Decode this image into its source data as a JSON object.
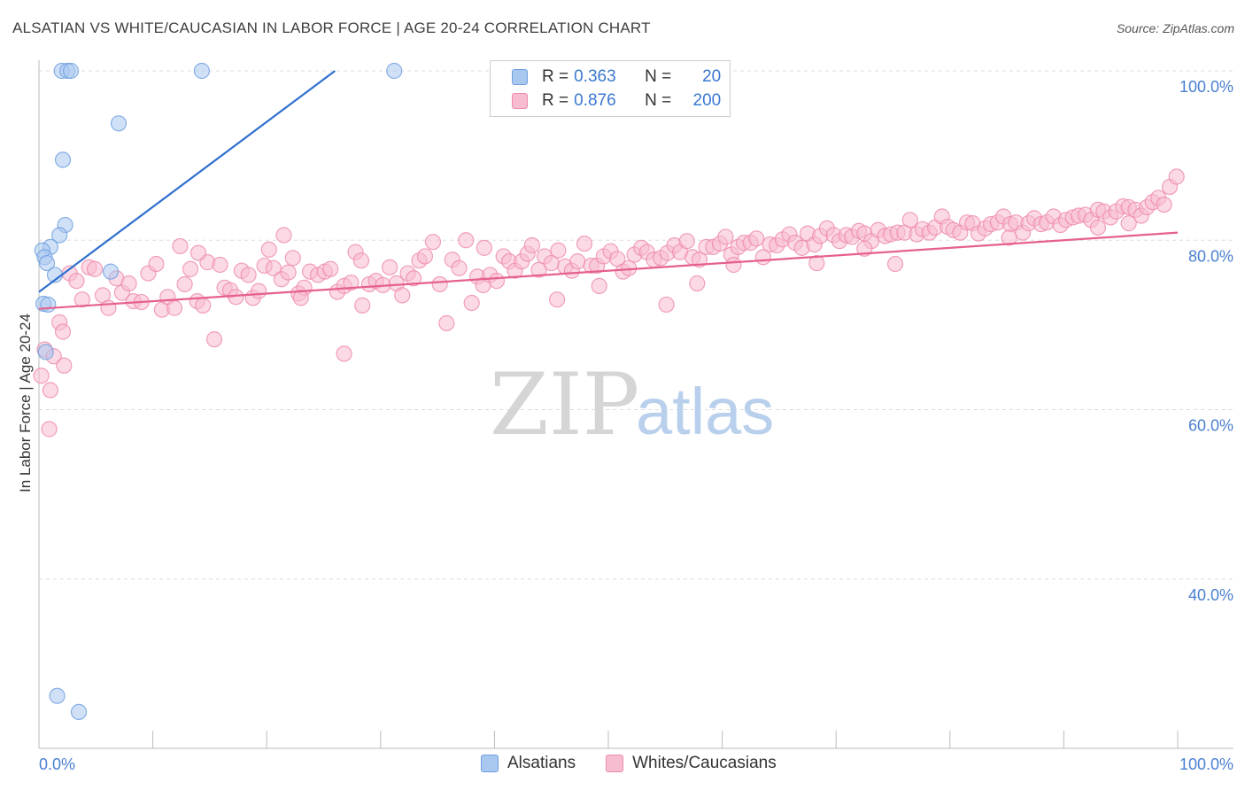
{
  "title": "ALSATIAN VS WHITE/CAUCASIAN IN LABOR FORCE | AGE 20-24 CORRELATION CHART",
  "source": "Source: ZipAtlas.com",
  "watermark": {
    "zip": "ZIP",
    "atlas": "atlas"
  },
  "legend": {
    "rows": [
      {
        "r_label": "R =",
        "r_value": "0.363",
        "n_label": "N =",
        "n_value": "20",
        "color": "#a9c8f0",
        "border": "#6d9ee0"
      },
      {
        "r_label": "R =",
        "r_value": "0.876",
        "n_label": "N =",
        "n_value": "200",
        "color": "#f7bcd0",
        "border": "#ee8aab"
      }
    ]
  },
  "bottom_legend": [
    {
      "label": "Alsatians",
      "color": "#a9c8f0",
      "border": "#6d9ee0"
    },
    {
      "label": "Whites/Caucasians",
      "color": "#f7bcd0",
      "border": "#ee8aab"
    }
  ],
  "chart_data": {
    "type": "scatter",
    "xlabel": "",
    "ylabel": "In Labor Force | Age 20-24",
    "xlim": [
      0,
      100
    ],
    "ylim": [
      20,
      100
    ],
    "y_tick_labels": [
      "100.0%",
      "80.0%",
      "60.0%",
      "40.0%"
    ],
    "y_ticks": [
      100,
      80,
      60,
      40
    ],
    "x_tick_labels": [
      "0.0%",
      "100.0%"
    ],
    "grid": true,
    "series": [
      {
        "name": "Alsatians",
        "color": "#a9c8f0",
        "stroke": "#6d9ee0",
        "line_color": "#2f6fcf",
        "trend": [
          [
            0,
            73.9
          ],
          [
            26,
            100
          ]
        ],
        "points": [
          [
            2.0,
            100
          ],
          [
            2.5,
            100
          ],
          [
            2.8,
            100
          ],
          [
            14.3,
            100
          ],
          [
            31.2,
            100
          ],
          [
            7.0,
            93.8
          ],
          [
            2.1,
            89.5
          ],
          [
            2.3,
            81.8
          ],
          [
            1.8,
            80.6
          ],
          [
            1.0,
            79.2
          ],
          [
            0.3,
            78.8
          ],
          [
            0.5,
            78.0
          ],
          [
            0.7,
            77.3
          ],
          [
            1.4,
            75.9
          ],
          [
            6.3,
            76.3
          ],
          [
            0.4,
            72.5
          ],
          [
            0.8,
            72.4
          ],
          [
            0.6,
            66.8
          ],
          [
            1.6,
            26.2
          ],
          [
            3.5,
            24.3
          ]
        ]
      },
      {
        "name": "Whites/Caucasians",
        "color": "#f7bcd0",
        "stroke": "#ee8aab",
        "line_color": "#e6608e",
        "trend": [
          [
            0,
            71.9
          ],
          [
            100,
            80.9
          ]
        ],
        "points": [
          [
            0.5,
            67.1
          ],
          [
            0.9,
            57.7
          ],
          [
            1.3,
            66.3
          ],
          [
            1.8,
            70.3
          ],
          [
            2.1,
            69.2
          ],
          [
            2.7,
            76.1
          ],
          [
            3.3,
            75.2
          ],
          [
            3.8,
            73.0
          ],
          [
            4.4,
            76.8
          ],
          [
            4.9,
            76.6
          ],
          [
            5.6,
            73.5
          ],
          [
            6.1,
            72.0
          ],
          [
            6.8,
            75.5
          ],
          [
            7.3,
            73.8
          ],
          [
            7.9,
            74.9
          ],
          [
            8.3,
            72.8
          ],
          [
            9.0,
            72.7
          ],
          [
            9.6,
            76.1
          ],
          [
            10.3,
            77.2
          ],
          [
            10.8,
            71.8
          ],
          [
            11.3,
            73.3
          ],
          [
            11.9,
            72.0
          ],
          [
            12.4,
            79.3
          ],
          [
            12.8,
            74.8
          ],
          [
            13.3,
            76.6
          ],
          [
            13.9,
            72.8
          ],
          [
            14.4,
            72.3
          ],
          [
            14.8,
            77.4
          ],
          [
            15.4,
            68.3
          ],
          [
            15.9,
            77.1
          ],
          [
            16.3,
            74.4
          ],
          [
            16.8,
            74.1
          ],
          [
            17.3,
            73.3
          ],
          [
            17.8,
            76.4
          ],
          [
            18.4,
            75.9
          ],
          [
            18.8,
            73.2
          ],
          [
            19.3,
            74.0
          ],
          [
            19.8,
            77.0
          ],
          [
            20.2,
            78.9
          ],
          [
            20.6,
            76.7
          ],
          [
            21.3,
            75.4
          ],
          [
            21.9,
            76.2
          ],
          [
            22.3,
            77.9
          ],
          [
            22.8,
            73.7
          ],
          [
            23.3,
            74.4
          ],
          [
            23.8,
            76.3
          ],
          [
            24.5,
            75.9
          ],
          [
            25.1,
            76.3
          ],
          [
            25.6,
            76.6
          ],
          [
            26.2,
            73.9
          ],
          [
            26.8,
            74.6
          ],
          [
            27.4,
            75.0
          ],
          [
            27.8,
            78.6
          ],
          [
            28.3,
            77.6
          ],
          [
            29.0,
            74.8
          ],
          [
            29.6,
            75.2
          ],
          [
            30.2,
            74.7
          ],
          [
            30.8,
            76.8
          ],
          [
            31.4,
            74.9
          ],
          [
            31.9,
            73.5
          ],
          [
            32.4,
            76.1
          ],
          [
            32.9,
            75.5
          ],
          [
            33.4,
            77.6
          ],
          [
            33.9,
            78.1
          ],
          [
            34.6,
            79.8
          ],
          [
            35.2,
            74.8
          ],
          [
            35.8,
            70.2
          ],
          [
            36.3,
            77.7
          ],
          [
            36.9,
            76.7
          ],
          [
            37.5,
            80.0
          ],
          [
            38.0,
            72.6
          ],
          [
            38.5,
            75.7
          ],
          [
            39.0,
            74.7
          ],
          [
            39.6,
            75.9
          ],
          [
            40.2,
            75.2
          ],
          [
            40.8,
            78.1
          ],
          [
            41.3,
            77.5
          ],
          [
            41.8,
            76.4
          ],
          [
            42.4,
            77.5
          ],
          [
            42.9,
            78.4
          ],
          [
            43.3,
            79.4
          ],
          [
            43.9,
            76.5
          ],
          [
            44.4,
            78.1
          ],
          [
            45.0,
            77.3
          ],
          [
            45.6,
            78.8
          ],
          [
            46.2,
            76.9
          ],
          [
            46.8,
            76.4
          ],
          [
            47.3,
            77.5
          ],
          [
            47.9,
            79.6
          ],
          [
            48.5,
            77.0
          ],
          [
            49.0,
            77.0
          ],
          [
            49.6,
            78.1
          ],
          [
            50.2,
            78.7
          ],
          [
            50.8,
            77.8
          ],
          [
            51.3,
            76.3
          ],
          [
            51.8,
            76.7
          ],
          [
            52.3,
            78.3
          ],
          [
            52.9,
            79.1
          ],
          [
            53.4,
            78.6
          ],
          [
            54.0,
            77.7
          ],
          [
            54.6,
            77.9
          ],
          [
            55.2,
            78.5
          ],
          [
            55.8,
            79.4
          ],
          [
            56.3,
            78.6
          ],
          [
            56.9,
            79.9
          ],
          [
            57.4,
            78.0
          ],
          [
            58.0,
            77.7
          ],
          [
            58.6,
            79.2
          ],
          [
            59.2,
            79.2
          ],
          [
            59.8,
            79.6
          ],
          [
            60.3,
            80.4
          ],
          [
            60.8,
            78.3
          ],
          [
            61.4,
            79.2
          ],
          [
            61.9,
            79.7
          ],
          [
            62.5,
            79.7
          ],
          [
            63.0,
            80.2
          ],
          [
            63.6,
            78.0
          ],
          [
            64.2,
            79.5
          ],
          [
            64.8,
            79.4
          ],
          [
            65.3,
            80.1
          ],
          [
            65.9,
            80.7
          ],
          [
            66.4,
            79.7
          ],
          [
            67.0,
            79.1
          ],
          [
            67.5,
            80.8
          ],
          [
            68.1,
            79.5
          ],
          [
            68.6,
            80.5
          ],
          [
            69.2,
            81.4
          ],
          [
            69.8,
            80.6
          ],
          [
            70.3,
            79.9
          ],
          [
            70.9,
            80.6
          ],
          [
            71.4,
            80.4
          ],
          [
            72.0,
            81.1
          ],
          [
            72.5,
            80.8
          ],
          [
            73.1,
            79.9
          ],
          [
            73.7,
            81.2
          ],
          [
            74.3,
            80.5
          ],
          [
            74.8,
            80.7
          ],
          [
            75.4,
            80.9
          ],
          [
            76.0,
            80.9
          ],
          [
            76.5,
            82.4
          ],
          [
            77.1,
            80.7
          ],
          [
            77.6,
            81.3
          ],
          [
            78.2,
            80.9
          ],
          [
            78.7,
            81.5
          ],
          [
            79.3,
            82.8
          ],
          [
            79.8,
            81.6
          ],
          [
            80.3,
            81.2
          ],
          [
            80.9,
            80.9
          ],
          [
            81.5,
            82.1
          ],
          [
            82.0,
            82.0
          ],
          [
            82.5,
            80.8
          ],
          [
            83.1,
            81.4
          ],
          [
            83.6,
            81.9
          ],
          [
            84.2,
            82.1
          ],
          [
            84.7,
            82.8
          ],
          [
            85.3,
            81.9
          ],
          [
            85.8,
            82.1
          ],
          [
            86.4,
            80.9
          ],
          [
            86.9,
            82.0
          ],
          [
            87.4,
            82.6
          ],
          [
            88.0,
            81.9
          ],
          [
            88.5,
            82.1
          ],
          [
            89.1,
            82.8
          ],
          [
            89.7,
            81.8
          ],
          [
            90.2,
            82.4
          ],
          [
            90.8,
            82.7
          ],
          [
            91.3,
            82.9
          ],
          [
            91.9,
            83.0
          ],
          [
            92.4,
            82.4
          ],
          [
            93.0,
            83.6
          ],
          [
            93.5,
            83.4
          ],
          [
            94.1,
            82.7
          ],
          [
            94.6,
            83.4
          ],
          [
            95.2,
            84.0
          ],
          [
            95.7,
            83.9
          ],
          [
            96.3,
            83.6
          ],
          [
            96.8,
            82.9
          ],
          [
            97.3,
            83.9
          ],
          [
            97.8,
            84.5
          ],
          [
            98.3,
            85.0
          ],
          [
            98.8,
            84.2
          ],
          [
            99.3,
            86.3
          ],
          [
            99.9,
            87.5
          ],
          [
            0.2,
            64.0
          ],
          [
            1.0,
            62.3
          ],
          [
            2.2,
            65.2
          ],
          [
            23.0,
            73.2
          ],
          [
            26.8,
            66.6
          ],
          [
            28.4,
            72.3
          ],
          [
            45.5,
            73.0
          ],
          [
            55.1,
            72.4
          ],
          [
            75.2,
            77.2
          ],
          [
            85.2,
            80.3
          ],
          [
            14.0,
            78.5
          ],
          [
            21.5,
            80.6
          ],
          [
            39.1,
            79.1
          ],
          [
            49.2,
            74.6
          ],
          [
            57.8,
            74.9
          ],
          [
            68.3,
            77.3
          ],
          [
            95.7,
            82.0
          ],
          [
            61.0,
            77.1
          ],
          [
            93.0,
            81.5
          ],
          [
            72.5,
            79.0
          ]
        ]
      }
    ]
  }
}
